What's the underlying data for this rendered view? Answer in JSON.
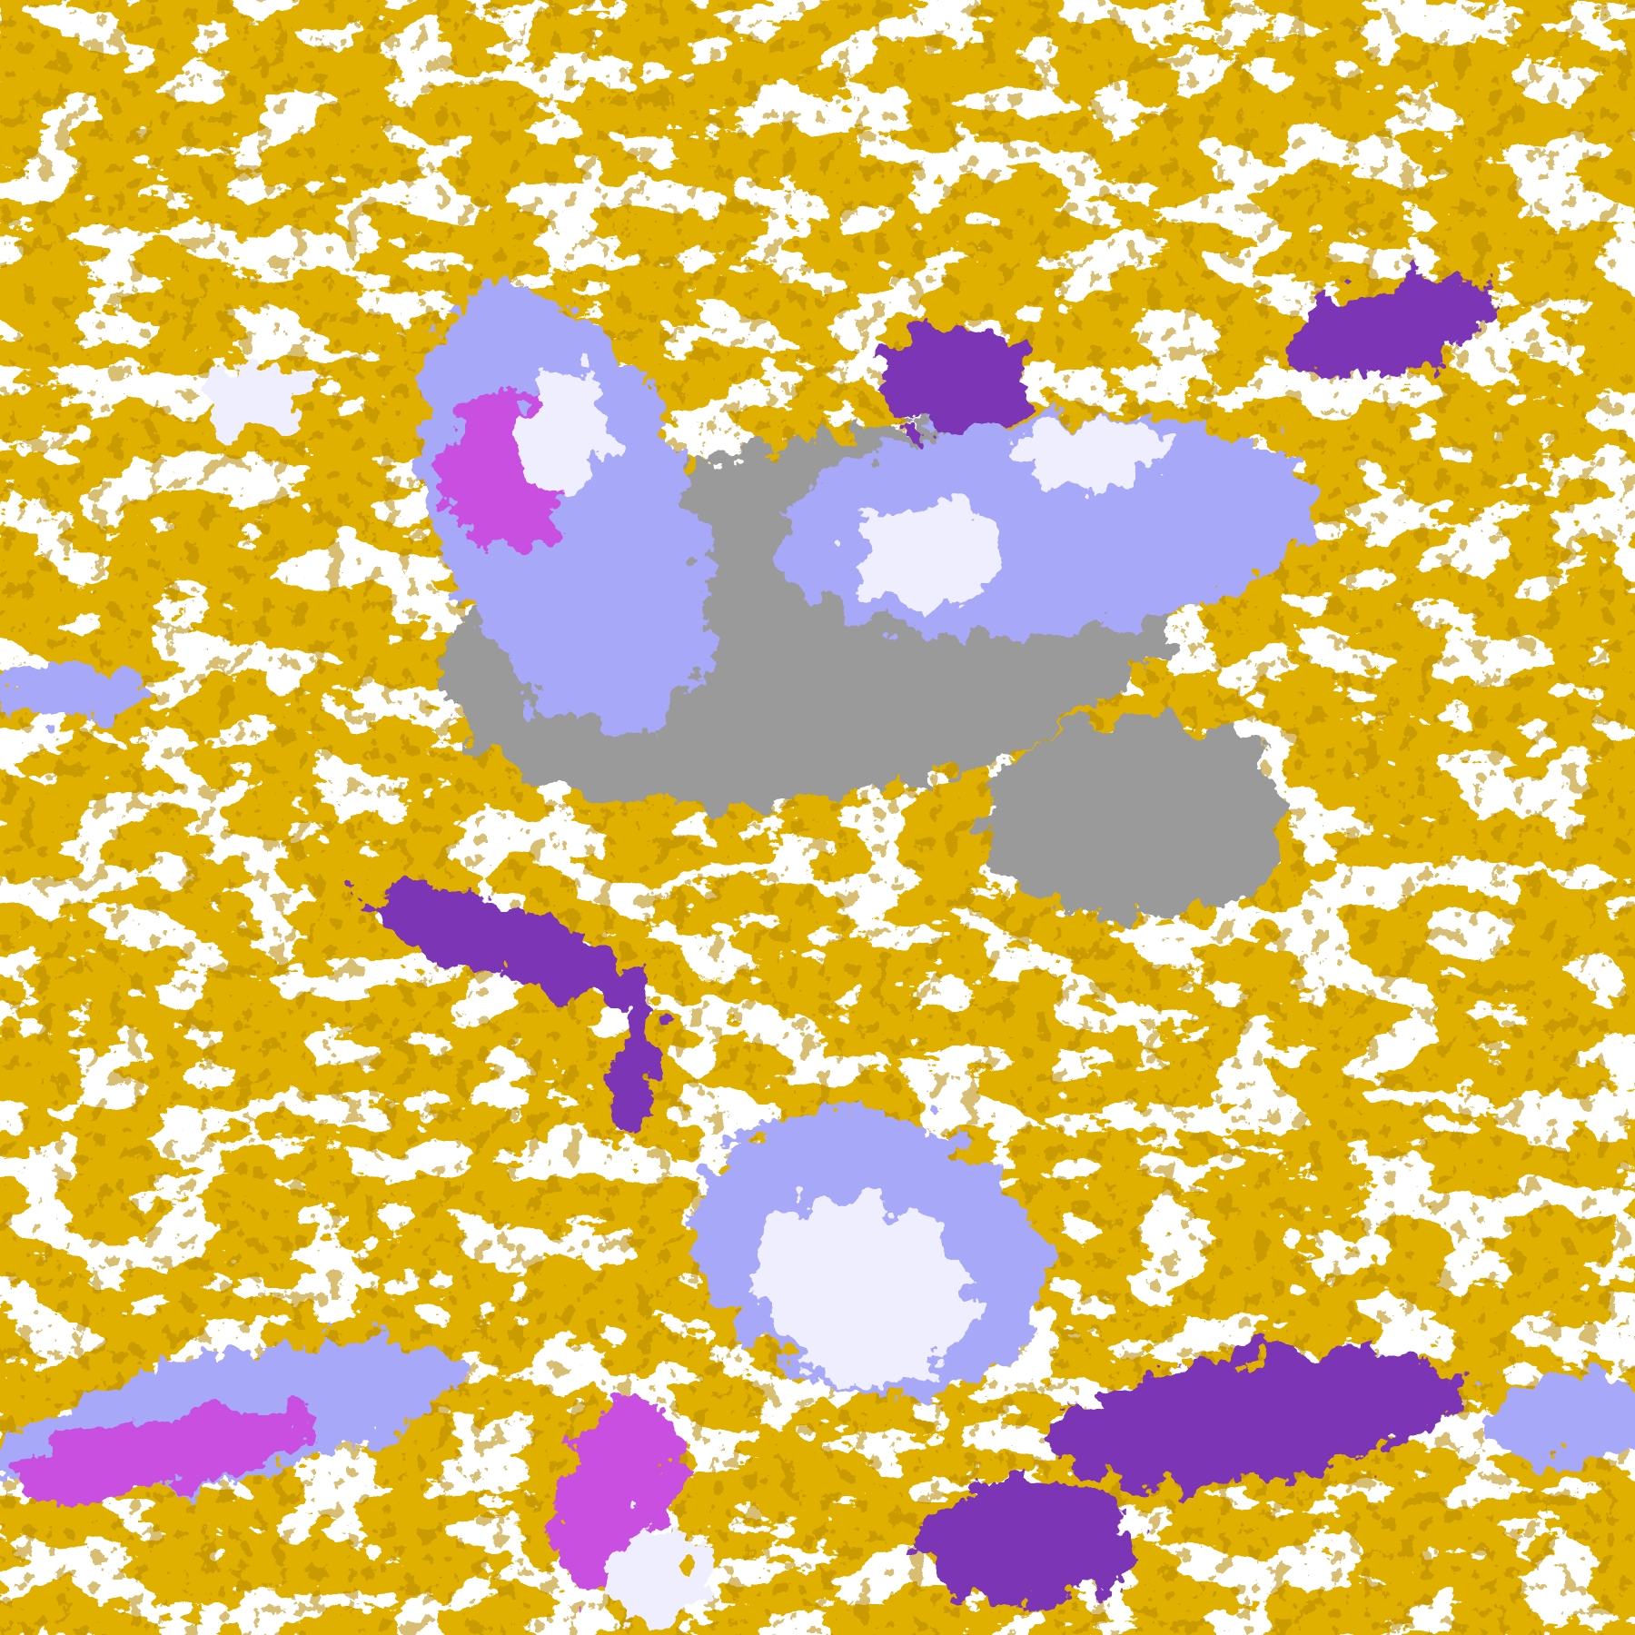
{
  "image": {
    "kind": "satellite cloud classification",
    "palette": {
      "background": "#ffffff",
      "gold": "#e0b000",
      "dark_gold": "#b88a00",
      "purple": "#7b35b5",
      "magenta": "#c850e0",
      "lavender": "#a8a8f8",
      "pale": "#eeeeff",
      "gray": "#9a9a9a"
    }
  }
}
